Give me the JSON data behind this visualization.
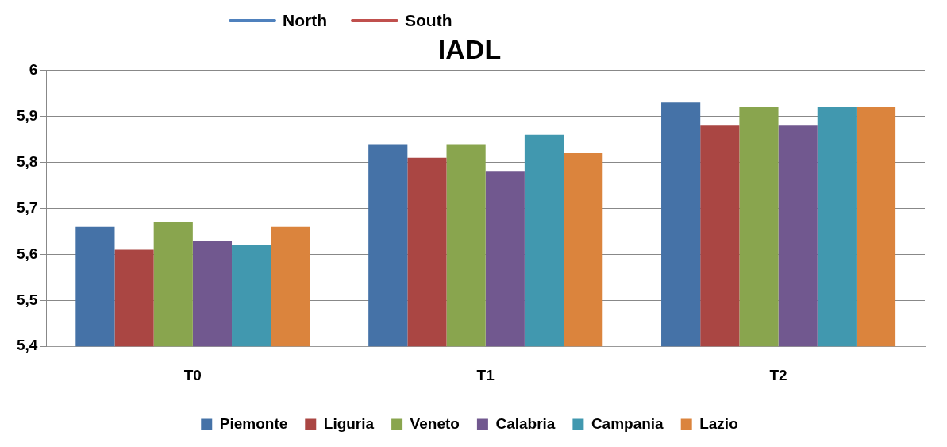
{
  "chart_data": {
    "type": "bar",
    "title": "IADL",
    "categories": [
      "T0",
      "T1",
      "T2"
    ],
    "series": [
      {
        "name": "North",
        "type": "line",
        "color": "#4f81bd",
        "values": [
          null,
          null,
          null
        ]
      },
      {
        "name": "South",
        "type": "line",
        "color": "#c0504d",
        "values": [
          null,
          null,
          null
        ]
      },
      {
        "name": "Piemonte",
        "color": "#4572a7",
        "values": [
          5.66,
          5.84,
          5.93
        ]
      },
      {
        "name": "Liguria",
        "color": "#aa4643",
        "values": [
          5.61,
          5.81,
          5.88
        ]
      },
      {
        "name": "Veneto",
        "color": "#89a54e",
        "values": [
          5.67,
          5.84,
          5.92
        ]
      },
      {
        "name": "Calabria",
        "color": "#71588f",
        "values": [
          5.63,
          5.78,
          5.88
        ]
      },
      {
        "name": "Campania",
        "color": "#4198af",
        "values": [
          5.62,
          5.86,
          5.92
        ]
      },
      {
        "name": "Lazio",
        "color": "#db843d",
        "values": [
          5.66,
          5.82,
          5.92
        ]
      }
    ],
    "ylim": [
      5.4,
      6
    ],
    "yticks": [
      {
        "value": 5.4,
        "label": "5,4"
      },
      {
        "value": 5.5,
        "label": "5,5"
      },
      {
        "value": 5.6,
        "label": "5,6"
      },
      {
        "value": 5.7,
        "label": "5,7"
      },
      {
        "value": 5.8,
        "label": "5,8"
      },
      {
        "value": 5.9,
        "label": "5,9"
      },
      {
        "value": 6,
        "label": "6"
      }
    ],
    "grid": "y",
    "legend": "bottom"
  }
}
